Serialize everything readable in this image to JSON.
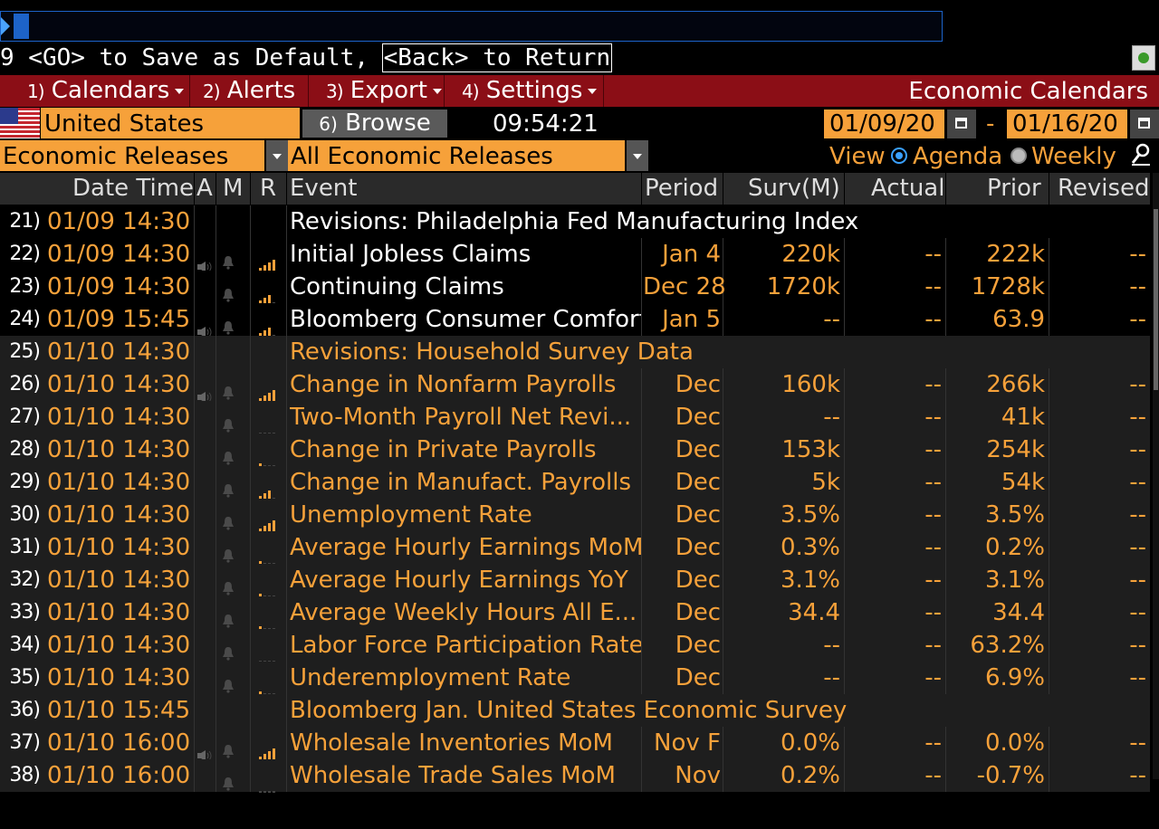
{
  "command_line": {
    "hint_prefix": "9 <GO> to Save as Default, ",
    "hint_boxed": "<Back> to Return"
  },
  "menu": {
    "items": [
      {
        "num": "1)",
        "label": "Calendars"
      },
      {
        "num": "2)",
        "label": "Alerts"
      },
      {
        "num": "3)",
        "label": "Export"
      },
      {
        "num": "4)",
        "label": "Settings"
      }
    ],
    "title": "Economic Calendars"
  },
  "filters": {
    "country": "United States",
    "browse_num": "6)",
    "browse_label": "Browse",
    "time": "09:54:21",
    "date_from": "01/09/20",
    "date_dash": "-",
    "date_to": "01/16/20",
    "category": "Economic Releases",
    "subcategory": "All Economic Releases",
    "view_label": "View",
    "view_agenda": "Agenda",
    "view_weekly": "Weekly",
    "selected_view": "Agenda"
  },
  "table": {
    "headers": {
      "date_time": "Date Time",
      "a": "A",
      "m": "M",
      "r": "R",
      "event": "Event",
      "period": "Period",
      "surv": "Surv(M)",
      "actual": "Actual",
      "prior": "Prior",
      "revised": "Revised"
    },
    "rows": [
      {
        "num": "21)",
        "dt": "01/09 14:30",
        "event": "Revisions: Philadelphia Fed Manufacturing Index",
        "period": "",
        "surv": "",
        "actual": "",
        "prior": "",
        "revised": "",
        "audio": false,
        "bell": false,
        "rel": 0,
        "shade": "dark",
        "span": true
      },
      {
        "num": "22)",
        "dt": "01/09 14:30",
        "event": "Initial Jobless Claims",
        "period": "Jan 4",
        "surv": "220k",
        "actual": "--",
        "prior": "222k",
        "revised": "--",
        "audio": true,
        "bell": true,
        "rel": 4,
        "shade": "dark"
      },
      {
        "num": "23)",
        "dt": "01/09 14:30",
        "event": "Continuing Claims",
        "period": "Dec 28",
        "surv": "1720k",
        "actual": "--",
        "prior": "1728k",
        "revised": "--",
        "audio": false,
        "bell": true,
        "rel": 3,
        "shade": "dark"
      },
      {
        "num": "24)",
        "dt": "01/09 15:45",
        "event": "Bloomberg Consumer Comfort",
        "period": "Jan 5",
        "surv": "--",
        "actual": "--",
        "prior": "63.9",
        "revised": "--",
        "audio": true,
        "bell": true,
        "rel": 3,
        "shade": "dark"
      },
      {
        "num": "25)",
        "dt": "01/10 14:30",
        "event": "Revisions: Household Survey Data",
        "period": "",
        "surv": "",
        "actual": "",
        "prior": "",
        "revised": "",
        "audio": false,
        "bell": false,
        "rel": 0,
        "shade": "grey",
        "span": true
      },
      {
        "num": "26)",
        "dt": "01/10 14:30",
        "event": "Change in Nonfarm Payrolls",
        "period": "Dec",
        "surv": "160k",
        "actual": "--",
        "prior": "266k",
        "revised": "--",
        "audio": true,
        "bell": true,
        "rel": 4,
        "shade": "grey"
      },
      {
        "num": "27)",
        "dt": "01/10 14:30",
        "event": "Two-Month Payroll Net Revi...",
        "period": "Dec",
        "surv": "--",
        "actual": "--",
        "prior": "41k",
        "revised": "--",
        "audio": false,
        "bell": true,
        "rel": 0,
        "shade": "grey"
      },
      {
        "num": "28)",
        "dt": "01/10 14:30",
        "event": "Change in Private Payrolls",
        "period": "Dec",
        "surv": "153k",
        "actual": "--",
        "prior": "254k",
        "revised": "--",
        "audio": false,
        "bell": true,
        "rel": 1,
        "shade": "grey"
      },
      {
        "num": "29)",
        "dt": "01/10 14:30",
        "event": "Change in Manufact. Payrolls",
        "period": "Dec",
        "surv": "5k",
        "actual": "--",
        "prior": "54k",
        "revised": "--",
        "audio": false,
        "bell": true,
        "rel": 3,
        "shade": "grey"
      },
      {
        "num": "30)",
        "dt": "01/10 14:30",
        "event": "Unemployment Rate",
        "period": "Dec",
        "surv": "3.5%",
        "actual": "--",
        "prior": "3.5%",
        "revised": "--",
        "audio": false,
        "bell": true,
        "rel": 4,
        "shade": "grey"
      },
      {
        "num": "31)",
        "dt": "01/10 14:30",
        "event": "Average Hourly Earnings MoM",
        "period": "Dec",
        "surv": "0.3%",
        "actual": "--",
        "prior": "0.2%",
        "revised": "--",
        "audio": false,
        "bell": true,
        "rel": 1,
        "shade": "grey"
      },
      {
        "num": "32)",
        "dt": "01/10 14:30",
        "event": "Average Hourly Earnings YoY",
        "period": "Dec",
        "surv": "3.1%",
        "actual": "--",
        "prior": "3.1%",
        "revised": "--",
        "audio": false,
        "bell": true,
        "rel": 1,
        "shade": "grey"
      },
      {
        "num": "33)",
        "dt": "01/10 14:30",
        "event": "Average Weekly Hours All E...",
        "period": "Dec",
        "surv": "34.4",
        "actual": "--",
        "prior": "34.4",
        "revised": "--",
        "audio": false,
        "bell": true,
        "rel": 1,
        "shade": "grey"
      },
      {
        "num": "34)",
        "dt": "01/10 14:30",
        "event": "Labor Force Participation Rate",
        "period": "Dec",
        "surv": "--",
        "actual": "--",
        "prior": "63.2%",
        "revised": "--",
        "audio": false,
        "bell": true,
        "rel": 0,
        "shade": "grey"
      },
      {
        "num": "35)",
        "dt": "01/10 14:30",
        "event": "Underemployment Rate",
        "period": "Dec",
        "surv": "--",
        "actual": "--",
        "prior": "6.9%",
        "revised": "--",
        "audio": false,
        "bell": true,
        "rel": 1,
        "shade": "grey"
      },
      {
        "num": "36)",
        "dt": "01/10 15:45",
        "event": "Bloomberg Jan. United States Economic Survey",
        "period": "",
        "surv": "",
        "actual": "",
        "prior": "",
        "revised": "",
        "audio": false,
        "bell": false,
        "rel": 0,
        "shade": "grey",
        "span": true
      },
      {
        "num": "37)",
        "dt": "01/10 16:00",
        "event": "Wholesale Inventories MoM",
        "period": "Nov F",
        "surv": "0.0%",
        "actual": "--",
        "prior": "0.0%",
        "revised": "--",
        "audio": true,
        "bell": true,
        "rel": 4,
        "shade": "grey"
      },
      {
        "num": "38)",
        "dt": "01/10 16:00",
        "event": "Wholesale Trade Sales MoM",
        "period": "Nov",
        "surv": "0.2%",
        "actual": "--",
        "prior": "-0.7%",
        "revised": "--",
        "audio": false,
        "bell": true,
        "rel": 0,
        "shade": "grey"
      }
    ]
  },
  "colors": {
    "accent": "#f6a13a",
    "menu_bg": "#8b0e16",
    "header_bg": "#2a2a2a",
    "selected_radio": "#3aa0ff"
  },
  "icons": {
    "audio": "speaker-icon",
    "bell": "bell-icon",
    "relevance": "relevance-bars-icon",
    "calendar": "calendar-icon",
    "search": "magnifier-icon"
  }
}
